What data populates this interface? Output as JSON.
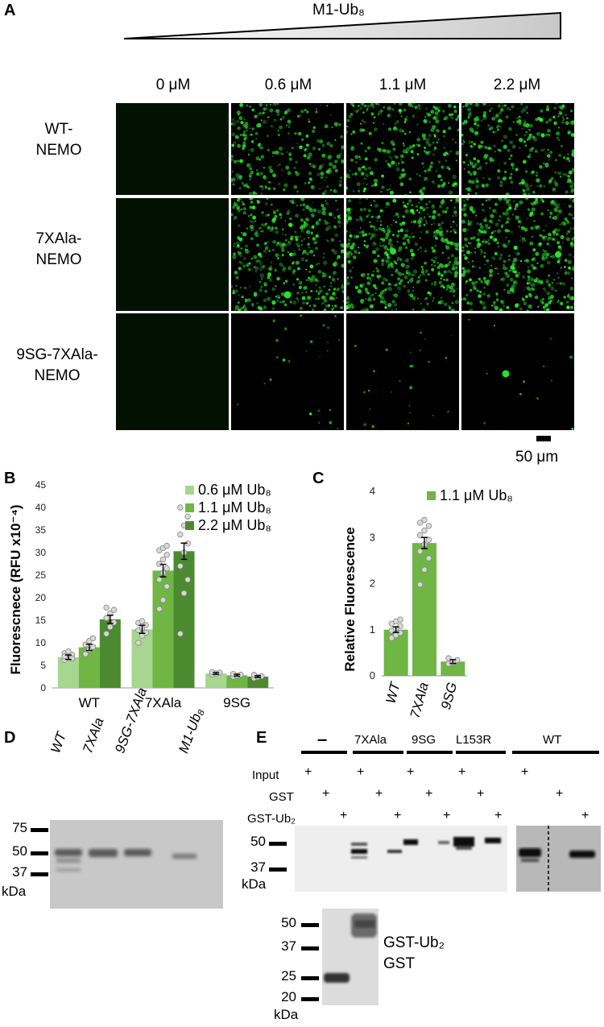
{
  "panels": {
    "a": "A",
    "b": "B",
    "c": "C",
    "d": "D",
    "e": "E"
  },
  "panelA": {
    "ligand": "M1-Ub₈",
    "concentrations": [
      "0 μM",
      "0.6 μM",
      "1.1 μM",
      "2.2 μM"
    ],
    "rows": [
      {
        "line1": "WT-",
        "line2": "NEMO"
      },
      {
        "line1": "7XAla-",
        "line2": "NEMO"
      },
      {
        "line1": "9SG-7XAla-",
        "line2": "NEMO"
      }
    ],
    "scalebar": "50 μm"
  },
  "chart_data": [
    {
      "type": "bar",
      "panel": "B",
      "categories": [
        "WT",
        "7XAla",
        "9SG"
      ],
      "ylabel": "Fluorescnece (RFU x10⁻⁴)",
      "ylim": [
        0,
        45
      ],
      "yticks": [
        0,
        5,
        10,
        15,
        20,
        25,
        30,
        35,
        40,
        45
      ],
      "legend_position": "top-right",
      "series": [
        {
          "name": "0.6 μM Ub₈",
          "color": "#a6d68f",
          "values": [
            6.8,
            13.0,
            3.2
          ],
          "errors": [
            0.5,
            0.9,
            0.2
          ]
        },
        {
          "name": "1.1 μM Ub₈",
          "color": "#6fb645",
          "values": [
            9.0,
            26.0,
            2.8
          ],
          "errors": [
            0.7,
            1.4,
            0.2
          ]
        },
        {
          "name": "2.2 μM Ub₈",
          "color": "#4c8a30",
          "values": [
            15.2,
            30.3,
            2.5
          ],
          "errors": [
            0.9,
            1.8,
            0.2
          ]
        }
      ],
      "points": [
        [
          [
            6.2,
            6.8,
            7.3,
            7.7,
            8.1,
            6.5,
            7.0
          ],
          [
            10.0,
            11.6,
            12.2,
            12.8,
            13.3,
            13.9,
            14.4,
            14.8
          ],
          [
            3.0,
            3.2,
            3.4,
            3.5
          ]
        ],
        [
          [
            7.5,
            8.5,
            9.1,
            9.6,
            10.4,
            11.0
          ],
          [
            17.5,
            19.5,
            22.5,
            24.0,
            25.5,
            26.5,
            27.5,
            28.5,
            29.5,
            30.5,
            31.0,
            31.5
          ],
          [
            2.5,
            2.7,
            2.9,
            3.1
          ]
        ],
        [
          [
            12.0,
            13.5,
            14.5,
            15.5,
            16.5,
            17.3,
            17.8
          ],
          [
            12.0,
            21.0,
            24.0,
            27.0,
            30.0,
            32.0,
            34.0,
            36.0,
            38.0,
            40.0
          ],
          [
            2.2,
            2.4,
            2.6,
            2.9
          ]
        ]
      ]
    },
    {
      "type": "bar",
      "panel": "C",
      "categories": [
        "WT",
        "7XAla",
        "9SG"
      ],
      "ylabel": "Relative Fluorescence",
      "ylim": [
        0,
        4
      ],
      "yticks": [
        0,
        1,
        2,
        3,
        4
      ],
      "legend_position": "top",
      "series": [
        {
          "name": "1.1 μM Ub₈",
          "color": "#6fb645",
          "values": [
            1.0,
            2.88,
            0.31
          ],
          "errors": [
            0.06,
            0.12,
            0.04
          ]
        }
      ],
      "points": [
        [
          0.82,
          0.88,
          0.93,
          0.98,
          1.02,
          1.08,
          1.13,
          1.18,
          1.22
        ],
        [
          1.98,
          2.3,
          2.55,
          2.7,
          2.85,
          2.95,
          3.05,
          3.15,
          3.25,
          3.32,
          3.38
        ],
        [
          0.26,
          0.3,
          0.34,
          0.38
        ]
      ]
    }
  ],
  "panelD": {
    "lanes": [
      "WT",
      "7XAla",
      "9SG-7XAla",
      "M1-Ub₈"
    ],
    "markers": [
      "75",
      "50",
      "37"
    ],
    "unit": "kDa"
  },
  "panelE": {
    "groups": [
      "–",
      "7XAla",
      "9SG",
      "L153R",
      "WT"
    ],
    "rows": [
      "Input",
      "GST",
      "GST-Ub₂"
    ],
    "plus": "+",
    "markers": [
      "50",
      "37"
    ],
    "unit": "kDa",
    "lowerMarkers": [
      "50",
      "37",
      "25",
      "20"
    ],
    "lowerUnit": "kDa",
    "lowerLabels": [
      "GST-Ub₂",
      "GST"
    ]
  }
}
